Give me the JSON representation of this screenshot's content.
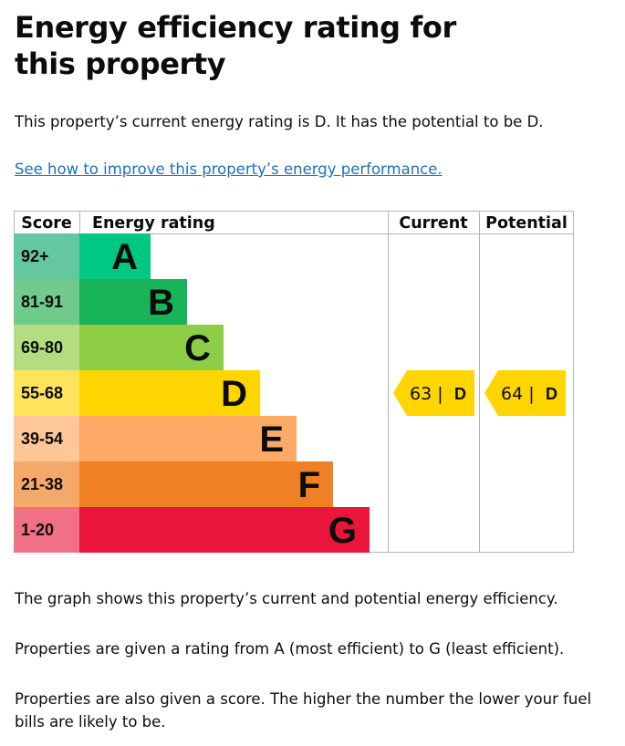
{
  "page": {
    "title": "Energy efficiency rating for this property",
    "intro": "This property’s current energy rating is D. It has the potential to be D.",
    "improve_link": "See how to improve this property’s energy performance.",
    "paragraphs": [
      "The graph shows this property’s current and potential energy efficiency.",
      "Properties are given a rating from A (most efficient) to G (least efficient).",
      "Properties are also given a score. The higher the number the lower your fuel bills are likely to be."
    ]
  },
  "chart_data": {
    "type": "bar",
    "headers": {
      "score": "Score",
      "rating": "Energy rating",
      "current": "Current",
      "potential": "Potential"
    },
    "bands": [
      {
        "letter": "A",
        "range": "92+",
        "color": "#00c781",
        "score_color": "#63c7a0"
      },
      {
        "letter": "B",
        "range": "81-91",
        "color": "#19b459",
        "score_color": "#6fca8b"
      },
      {
        "letter": "C",
        "range": "69-80",
        "color": "#8dce46",
        "score_color": "#b3dd80"
      },
      {
        "letter": "D",
        "range": "55-68",
        "color": "#ffd500",
        "score_color": "#ffe45c"
      },
      {
        "letter": "E",
        "range": "39-54",
        "color": "#fcaa65",
        "score_color": "#fdc797"
      },
      {
        "letter": "F",
        "range": "21-38",
        "color": "#ef8023",
        "score_color": "#f4a96b"
      },
      {
        "letter": "G",
        "range": "1-20",
        "color": "#e9153b",
        "score_color": "#f07086"
      }
    ],
    "current": {
      "score": 63,
      "band": "D",
      "label": "63 |",
      "letter": "D"
    },
    "potential": {
      "score": 64,
      "band": "D",
      "label": "64 |",
      "letter": "D"
    }
  }
}
